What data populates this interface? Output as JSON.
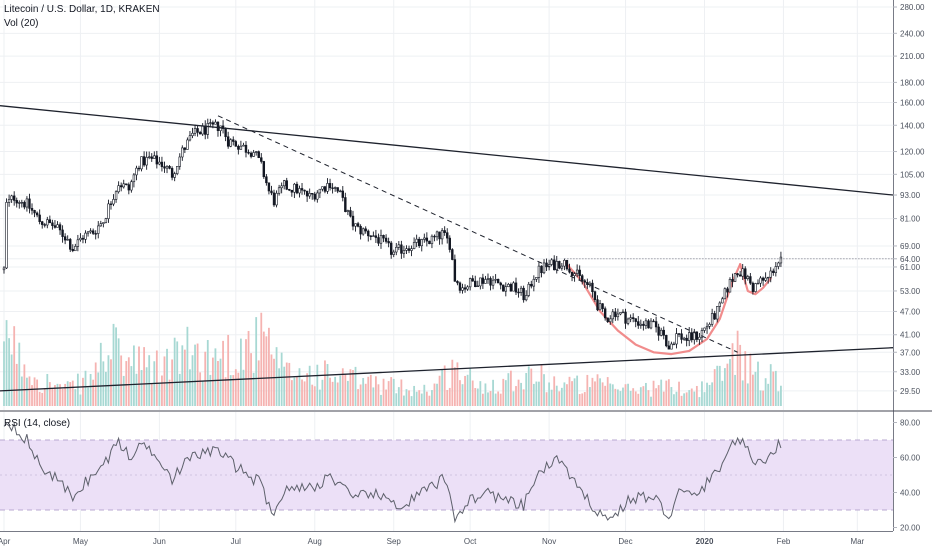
{
  "colors": {
    "up": "#26a69a",
    "down": "#ef5350",
    "volume_up": "#a7d8d3",
    "volume_down": "#f5b3b1",
    "candle": "#131722",
    "rsi_line": "#5d606b",
    "rsi_band": "#ece0f7",
    "cup_curve": "#f08080",
    "grid": "#eef0f3",
    "axis_text": "#4c525e"
  },
  "header": {
    "title": "Litecoin / U.S. Dollar, 1D, KRAKEN",
    "volume": "Vol (20)",
    "rsi": "RSI (14, close)"
  },
  "chart_data": [
    {
      "type": "candlestick",
      "title": "Litecoin / U.S. Dollar, 1D, KRAKEN",
      "scale": "log",
      "ylim": [
        27,
        285
      ],
      "y_ticks": [
        "280.00",
        "240.00",
        "210.00",
        "180.00",
        "160.00",
        "140.00",
        "120.00",
        "105.00",
        "93.00",
        "81.00",
        "69.00",
        "64.00",
        "61.00",
        "53.00",
        "47.00",
        "41.00",
        "37.00",
        "33.00",
        "29.50"
      ],
      "x_ticks": [
        "Apr",
        "May",
        "Jun",
        "Jul",
        "Aug",
        "Sep",
        "Oct",
        "Nov",
        "Dec",
        "2020",
        "Feb",
        "Mar"
      ],
      "x_range": [
        "2019-04-01",
        "2020-03-15"
      ],
      "close_path": [
        [
          "2019-04-01",
          60
        ],
        [
          "2019-04-02",
          88
        ],
        [
          "2019-04-05",
          92
        ],
        [
          "2019-04-10",
          88
        ],
        [
          "2019-04-15",
          80
        ],
        [
          "2019-04-20",
          78
        ],
        [
          "2019-04-25",
          73
        ],
        [
          "2019-04-28",
          68
        ],
        [
          "2019-05-02",
          73
        ],
        [
          "2019-05-06",
          75
        ],
        [
          "2019-05-10",
          80
        ],
        [
          "2019-05-13",
          90
        ],
        [
          "2019-05-16",
          100
        ],
        [
          "2019-05-20",
          96
        ],
        [
          "2019-05-24",
          112
        ],
        [
          "2019-05-28",
          115
        ],
        [
          "2019-06-02",
          112
        ],
        [
          "2019-06-06",
          105
        ],
        [
          "2019-06-10",
          120
        ],
        [
          "2019-06-14",
          132
        ],
        [
          "2019-06-18",
          136
        ],
        [
          "2019-06-22",
          138
        ],
        [
          "2019-06-25",
          140
        ],
        [
          "2019-06-28",
          128
        ],
        [
          "2019-07-02",
          125
        ],
        [
          "2019-07-05",
          122
        ],
        [
          "2019-07-08",
          120
        ],
        [
          "2019-07-11",
          110
        ],
        [
          "2019-07-14",
          95
        ],
        [
          "2019-07-16",
          90
        ],
        [
          "2019-07-20",
          98
        ],
        [
          "2019-07-25",
          96
        ],
        [
          "2019-07-30",
          92
        ],
        [
          "2019-08-03",
          96
        ],
        [
          "2019-08-07",
          100
        ],
        [
          "2019-08-11",
          93
        ],
        [
          "2019-08-15",
          80
        ],
        [
          "2019-08-18",
          76
        ],
        [
          "2019-08-23",
          74
        ],
        [
          "2019-08-27",
          71
        ],
        [
          "2019-09-01",
          66
        ],
        [
          "2019-09-06",
          69
        ],
        [
          "2019-09-12",
          70
        ],
        [
          "2019-09-17",
          72
        ],
        [
          "2019-09-20",
          74
        ],
        [
          "2019-09-23",
          70
        ],
        [
          "2019-09-25",
          57
        ],
        [
          "2019-09-28",
          54
        ],
        [
          "2019-10-02",
          56
        ],
        [
          "2019-10-08",
          57
        ],
        [
          "2019-10-13",
          55
        ],
        [
          "2019-10-18",
          54
        ],
        [
          "2019-10-23",
          51
        ],
        [
          "2019-10-26",
          58
        ],
        [
          "2019-10-30",
          61
        ],
        [
          "2019-11-03",
          62
        ],
        [
          "2019-11-06",
          63
        ],
        [
          "2019-11-09",
          61
        ],
        [
          "2019-11-13",
          57
        ],
        [
          "2019-11-17",
          54
        ],
        [
          "2019-11-20",
          49
        ],
        [
          "2019-11-23",
          45
        ],
        [
          "2019-11-27",
          47
        ],
        [
          "2019-12-02",
          45
        ],
        [
          "2019-12-07",
          44
        ],
        [
          "2019-12-12",
          43
        ],
        [
          "2019-12-16",
          41
        ],
        [
          "2019-12-18",
          38
        ],
        [
          "2019-12-21",
          41
        ],
        [
          "2019-12-25",
          40
        ],
        [
          "2019-12-30",
          41
        ],
        [
          "2020-01-03",
          44
        ],
        [
          "2020-01-07",
          48
        ],
        [
          "2020-01-10",
          54
        ],
        [
          "2020-01-14",
          60
        ],
        [
          "2020-01-17",
          58
        ],
        [
          "2020-01-20",
          54
        ],
        [
          "2020-01-23",
          56
        ],
        [
          "2020-01-26",
          57
        ],
        [
          "2020-01-29",
          62
        ],
        [
          "2020-01-31",
          63
        ]
      ],
      "annotations": {
        "lines": [
          {
            "style": "solid",
            "from": [
              "2019-03-30",
              157
            ],
            "to": [
              "2020-03-15",
              93
            ]
          },
          {
            "style": "dashed",
            "from": [
              "2019-06-24",
              148
            ],
            "to": [
              "2020-01-14",
              37
            ]
          },
          {
            "style": "solid",
            "from": [
              "2019-03-30",
              29.5
            ],
            "to": [
              "2020-03-15",
              38
            ]
          }
        ],
        "resistance_level": 64,
        "cup_curve": [
          [
            "2019-11-07",
            63
          ],
          [
            "2019-11-14",
            56
          ],
          [
            "2019-11-21",
            47
          ],
          [
            "2019-11-28",
            42
          ],
          [
            "2019-12-05",
            38.7
          ],
          [
            "2019-12-12",
            37
          ],
          [
            "2019-12-19",
            36.6
          ],
          [
            "2019-12-26",
            37.3
          ],
          [
            "2020-01-02",
            40
          ],
          [
            "2020-01-07",
            45
          ],
          [
            "2020-01-12",
            56
          ],
          [
            "2020-01-15",
            62
          ]
        ],
        "handle_curve": [
          [
            "2020-01-15",
            62
          ],
          [
            "2020-01-18",
            53
          ],
          [
            "2020-01-21",
            52
          ],
          [
            "2020-01-24",
            54
          ],
          [
            "2020-01-27",
            57
          ]
        ]
      }
    },
    {
      "type": "bar",
      "title": "Vol (20)",
      "profile": [
        [
          "2019-04-01",
          0.4
        ],
        [
          "2019-04-03",
          0.75
        ],
        [
          "2019-04-06",
          0.45
        ],
        [
          "2019-04-15",
          0.25
        ],
        [
          "2019-04-25",
          0.15
        ],
        [
          "2019-05-05",
          0.25
        ],
        [
          "2019-05-12",
          0.55
        ],
        [
          "2019-05-20",
          0.4
        ],
        [
          "2019-06-01",
          0.35
        ],
        [
          "2019-06-10",
          0.5
        ],
        [
          "2019-06-22",
          0.45
        ],
        [
          "2019-07-01",
          0.5
        ],
        [
          "2019-07-12",
          0.6
        ],
        [
          "2019-07-20",
          0.3
        ],
        [
          "2019-08-01",
          0.3
        ],
        [
          "2019-08-15",
          0.25
        ],
        [
          "2019-09-01",
          0.18
        ],
        [
          "2019-09-15",
          0.15
        ],
        [
          "2019-09-25",
          0.35
        ],
        [
          "2019-10-05",
          0.18
        ],
        [
          "2019-10-25",
          0.3
        ],
        [
          "2019-11-05",
          0.2
        ],
        [
          "2019-11-20",
          0.2
        ],
        [
          "2019-12-01",
          0.15
        ],
        [
          "2019-12-15",
          0.18
        ],
        [
          "2019-12-30",
          0.15
        ],
        [
          "2020-01-08",
          0.3
        ],
        [
          "2020-01-14",
          0.55
        ],
        [
          "2020-01-20",
          0.3
        ],
        [
          "2020-01-31",
          0.25
        ]
      ]
    },
    {
      "type": "line",
      "title": "RSI (14, close)",
      "ylim": [
        18,
        86
      ],
      "y_ticks": [
        "80.00",
        "60.00",
        "40.00",
        "20.00"
      ],
      "band": [
        30,
        70
      ],
      "midline": 50,
      "values": [
        [
          "2019-04-01",
          80
        ],
        [
          "2019-04-05",
          78
        ],
        [
          "2019-04-10",
          70
        ],
        [
          "2019-04-15",
          55
        ],
        [
          "2019-04-20",
          50
        ],
        [
          "2019-04-25",
          42
        ],
        [
          "2019-04-28",
          38
        ],
        [
          "2019-05-03",
          46
        ],
        [
          "2019-05-08",
          52
        ],
        [
          "2019-05-13",
          62
        ],
        [
          "2019-05-16",
          70
        ],
        [
          "2019-05-20",
          60
        ],
        [
          "2019-05-26",
          68
        ],
        [
          "2019-06-01",
          60
        ],
        [
          "2019-06-06",
          48
        ],
        [
          "2019-06-12",
          58
        ],
        [
          "2019-06-18",
          63
        ],
        [
          "2019-06-24",
          64
        ],
        [
          "2019-07-01",
          55
        ],
        [
          "2019-07-06",
          50
        ],
        [
          "2019-07-11",
          45
        ],
        [
          "2019-07-15",
          28
        ],
        [
          "2019-07-20",
          40
        ],
        [
          "2019-07-25",
          44
        ],
        [
          "2019-08-01",
          42
        ],
        [
          "2019-08-06",
          50
        ],
        [
          "2019-08-11",
          45
        ],
        [
          "2019-08-16",
          35
        ],
        [
          "2019-08-22",
          40
        ],
        [
          "2019-08-29",
          36
        ],
        [
          "2019-09-05",
          32
        ],
        [
          "2019-09-10",
          38
        ],
        [
          "2019-09-17",
          44
        ],
        [
          "2019-09-21",
          48
        ],
        [
          "2019-09-25",
          26
        ],
        [
          "2019-10-01",
          36
        ],
        [
          "2019-10-08",
          40
        ],
        [
          "2019-10-15",
          35
        ],
        [
          "2019-10-22",
          32
        ],
        [
          "2019-10-27",
          50
        ],
        [
          "2019-11-01",
          55
        ],
        [
          "2019-11-05",
          60
        ],
        [
          "2019-11-08",
          52
        ],
        [
          "2019-11-13",
          40
        ],
        [
          "2019-11-20",
          30
        ],
        [
          "2019-11-25",
          24
        ],
        [
          "2019-12-01",
          34
        ],
        [
          "2019-12-07",
          38
        ],
        [
          "2019-12-13",
          36
        ],
        [
          "2019-12-18",
          26
        ],
        [
          "2019-12-22",
          40
        ],
        [
          "2019-12-28",
          38
        ],
        [
          "2020-01-04",
          48
        ],
        [
          "2020-01-09",
          60
        ],
        [
          "2020-01-14",
          72
        ],
        [
          "2020-01-17",
          65
        ],
        [
          "2020-01-21",
          57
        ],
        [
          "2020-01-25",
          60
        ],
        [
          "2020-01-31",
          68
        ]
      ]
    }
  ]
}
